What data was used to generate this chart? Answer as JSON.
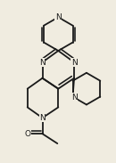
{
  "background_color": "#f0ece0",
  "line_color": "#1a1a1a",
  "line_width": 1.3,
  "font_size": 6.5,
  "bg": "#f0ece0"
}
